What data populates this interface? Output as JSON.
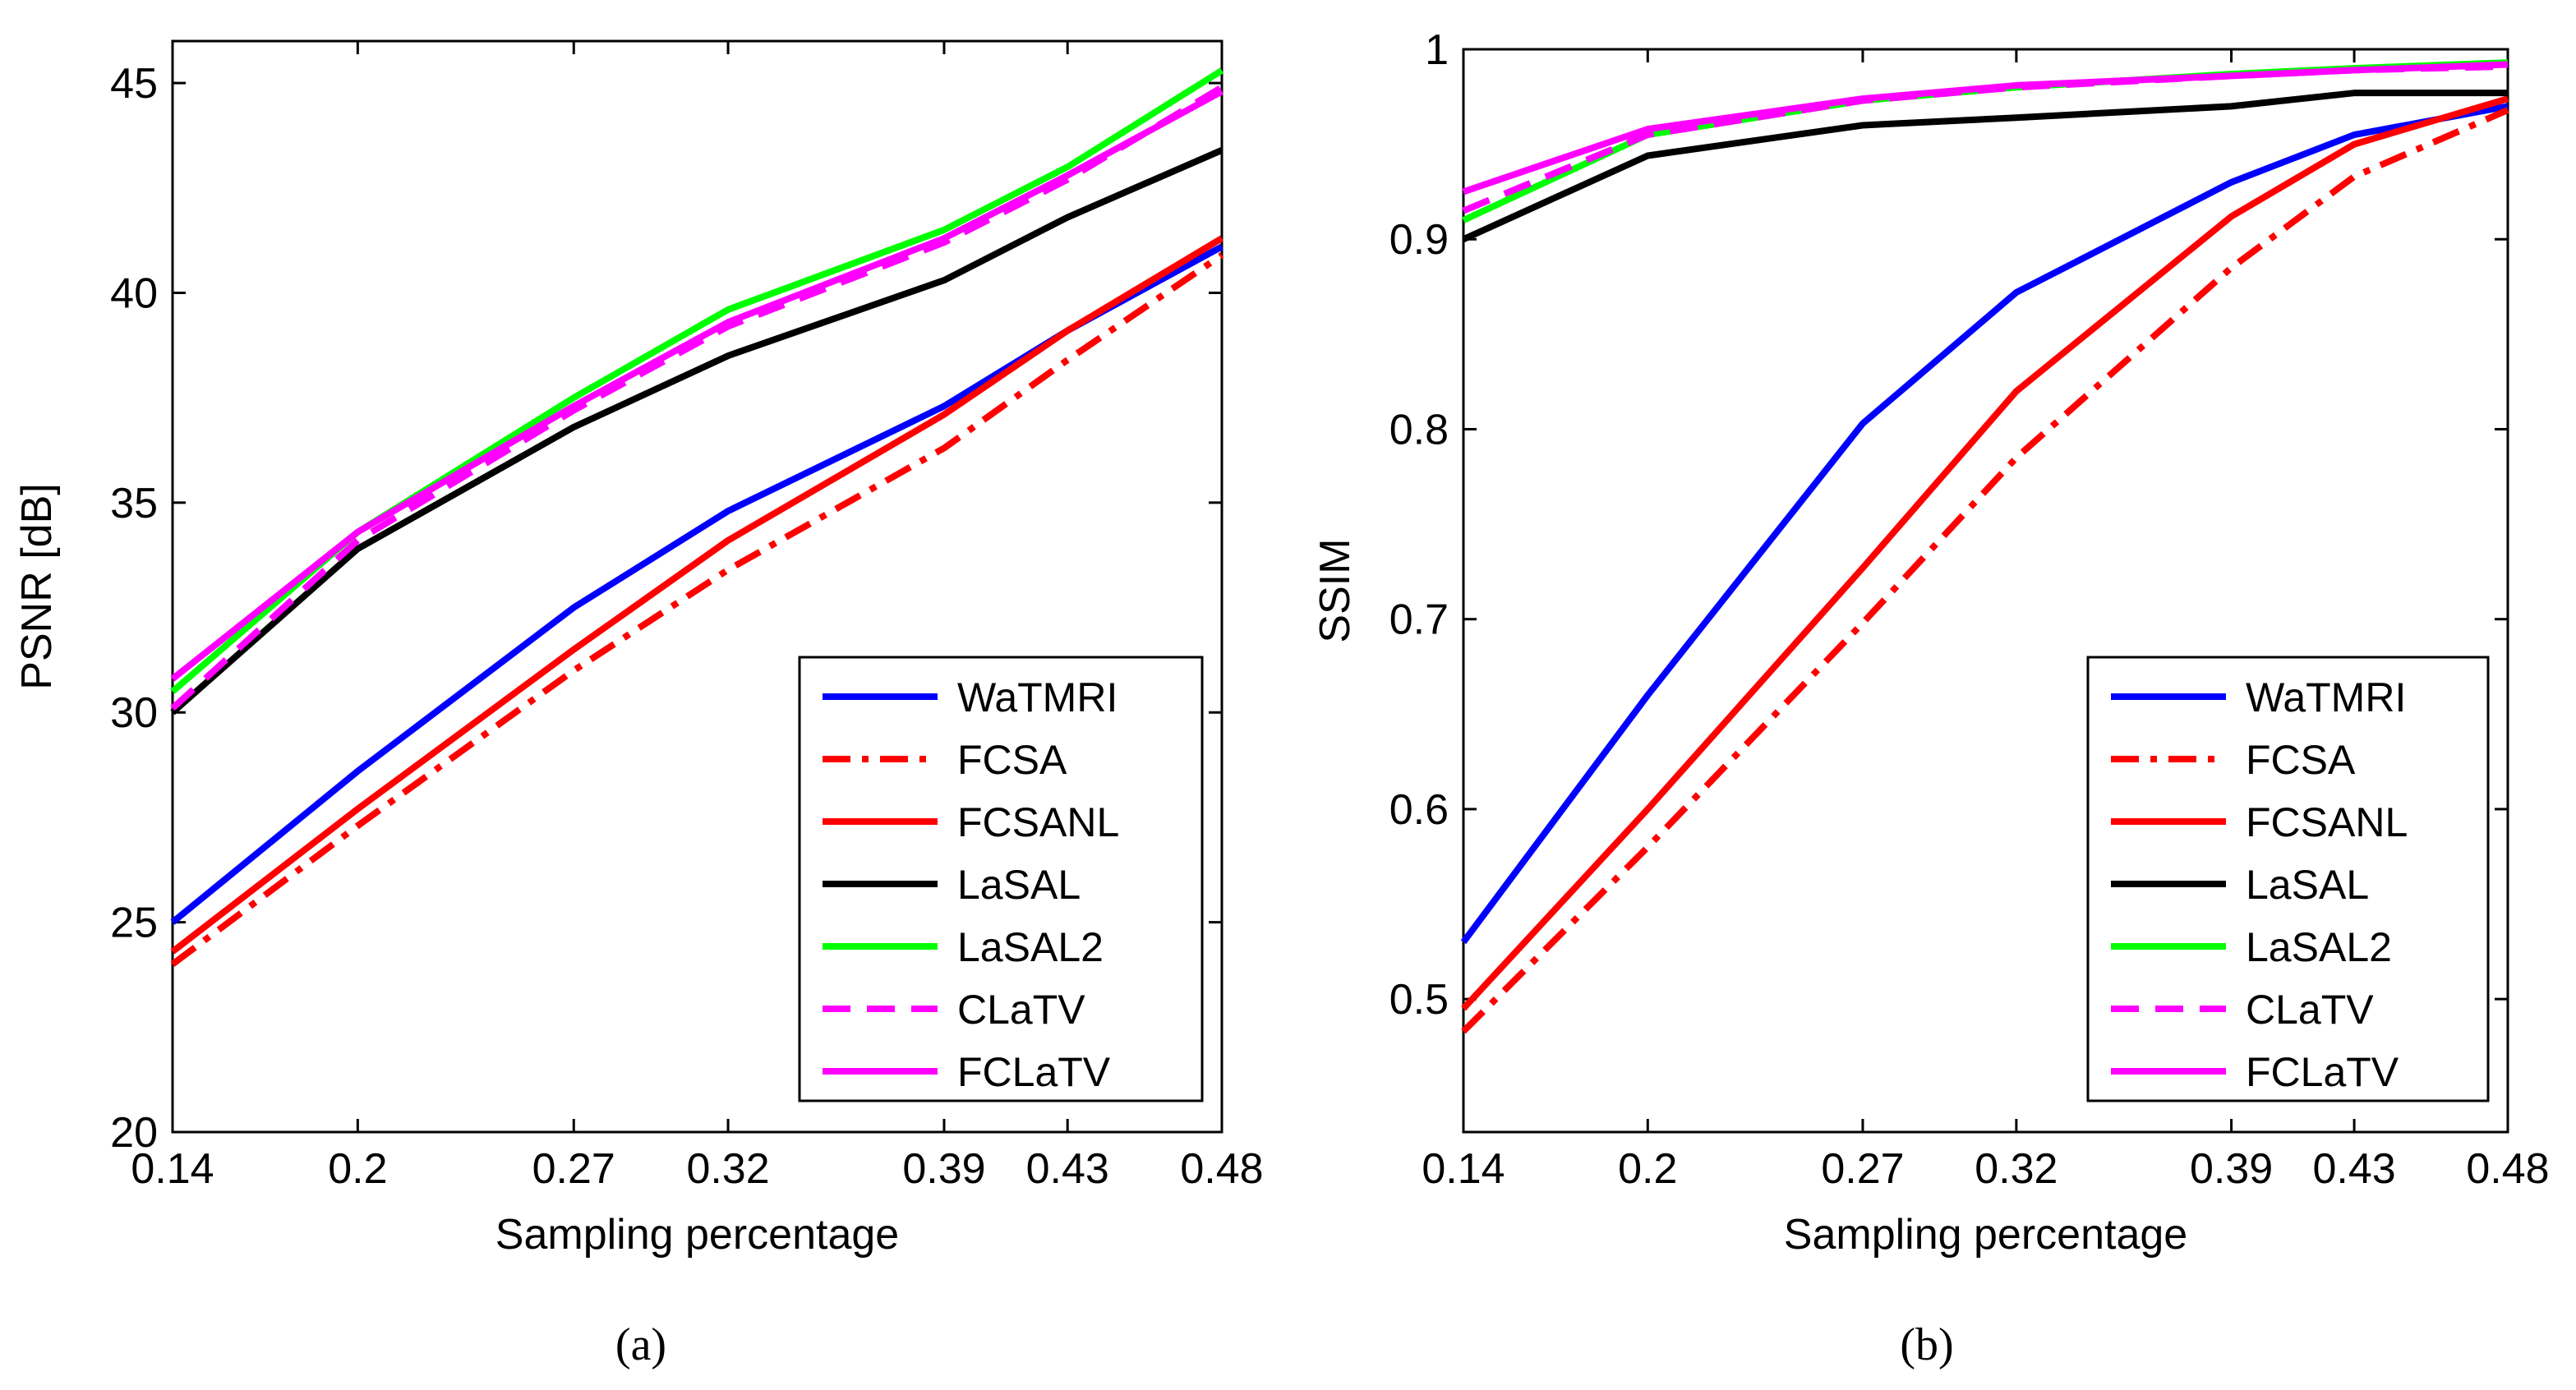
{
  "chart_data": [
    {
      "type": "line",
      "panel_label": "(a)",
      "xlabel": "Sampling percentage",
      "ylabel": "PSNR [dB]",
      "x": [
        0.14,
        0.2,
        0.27,
        0.32,
        0.39,
        0.43,
        0.48
      ],
      "xlim": [
        0.14,
        0.48
      ],
      "ylim": [
        20,
        46
      ],
      "xticks": [
        0.14,
        0.2,
        0.27,
        0.32,
        0.39,
        0.43,
        0.48
      ],
      "xtick_labels": [
        "0.14",
        "0.2",
        "0.27",
        "0.32",
        "0.39",
        "0.43",
        "0.48"
      ],
      "yticks": [
        20,
        25,
        30,
        35,
        40,
        45
      ],
      "ytick_labels": [
        "20",
        "25",
        "30",
        "35",
        "40",
        "45"
      ],
      "grid": false,
      "legend_position": "bottom-right",
      "series": [
        {
          "name": "WaTMRI",
          "color": "#0000ff",
          "dash": "solid",
          "values": [
            25.0,
            28.6,
            32.5,
            34.8,
            37.3,
            39.1,
            41.1
          ]
        },
        {
          "name": "FCSA",
          "color": "#ff0000",
          "dash": "dashdot",
          "values": [
            24.0,
            27.3,
            31.0,
            33.4,
            36.3,
            38.4,
            40.9
          ]
        },
        {
          "name": "FCSANL",
          "color": "#ff0000",
          "dash": "solid",
          "values": [
            24.3,
            27.7,
            31.5,
            34.1,
            37.1,
            39.1,
            41.3
          ]
        },
        {
          "name": "LaSAL",
          "color": "#000000",
          "dash": "solid",
          "values": [
            30.0,
            33.9,
            36.8,
            38.5,
            40.3,
            41.8,
            43.4
          ]
        },
        {
          "name": "LaSAL2",
          "color": "#00ff00",
          "dash": "solid",
          "values": [
            30.5,
            34.3,
            37.5,
            39.6,
            41.5,
            43.0,
            45.3
          ]
        },
        {
          "name": "CLaTV",
          "color": "#ff00ff",
          "dash": "dashed",
          "values": [
            30.1,
            34.1,
            37.2,
            39.2,
            41.2,
            42.7,
            44.9
          ]
        },
        {
          "name": "FCLaTV",
          "color": "#ff00ff",
          "dash": "solid",
          "values": [
            30.8,
            34.3,
            37.3,
            39.3,
            41.3,
            42.8,
            44.8
          ]
        }
      ]
    },
    {
      "type": "line",
      "panel_label": "(b)",
      "xlabel": "Sampling percentage",
      "ylabel": "SSIM",
      "x": [
        0.14,
        0.2,
        0.27,
        0.32,
        0.39,
        0.43,
        0.48
      ],
      "xlim": [
        0.14,
        0.48
      ],
      "ylim": [
        0.43,
        1.0
      ],
      "xticks": [
        0.14,
        0.2,
        0.27,
        0.32,
        0.39,
        0.43,
        0.48
      ],
      "xtick_labels": [
        "0.14",
        "0.2",
        "0.27",
        "0.32",
        "0.39",
        "0.43",
        "0.48"
      ],
      "yticks": [
        0.5,
        0.6,
        0.7,
        0.8,
        0.9,
        1.0
      ],
      "ytick_labels": [
        "0.5",
        "0.6",
        "0.7",
        "0.8",
        "0.9",
        "1"
      ],
      "grid": false,
      "legend_position": "bottom-right",
      "series": [
        {
          "name": "WaTMRI",
          "color": "#0000ff",
          "dash": "solid",
          "values": [
            0.53,
            0.66,
            0.803,
            0.872,
            0.93,
            0.955,
            0.97
          ]
        },
        {
          "name": "FCSA",
          "color": "#ff0000",
          "dash": "dashdot",
          "values": [
            0.483,
            0.58,
            0.698,
            0.785,
            0.885,
            0.933,
            0.968
          ]
        },
        {
          "name": "FCSANL",
          "color": "#ff0000",
          "dash": "solid",
          "values": [
            0.495,
            0.6,
            0.727,
            0.82,
            0.912,
            0.95,
            0.974
          ]
        },
        {
          "name": "LaSAL",
          "color": "#000000",
          "dash": "solid",
          "values": [
            0.9,
            0.944,
            0.96,
            0.964,
            0.97,
            0.977,
            0.977
          ]
        },
        {
          "name": "LaSAL2",
          "color": "#00ff00",
          "dash": "solid",
          "values": [
            0.91,
            0.955,
            0.973,
            0.98,
            0.987,
            0.99,
            0.993
          ]
        },
        {
          "name": "CLaTV",
          "color": "#ff00ff",
          "dash": "dashed",
          "values": [
            0.915,
            0.955,
            0.973,
            0.98,
            0.986,
            0.989,
            0.991
          ]
        },
        {
          "name": "FCLaTV",
          "color": "#ff00ff",
          "dash": "solid",
          "values": [
            0.925,
            0.958,
            0.974,
            0.981,
            0.986,
            0.989,
            0.992
          ]
        }
      ]
    }
  ]
}
